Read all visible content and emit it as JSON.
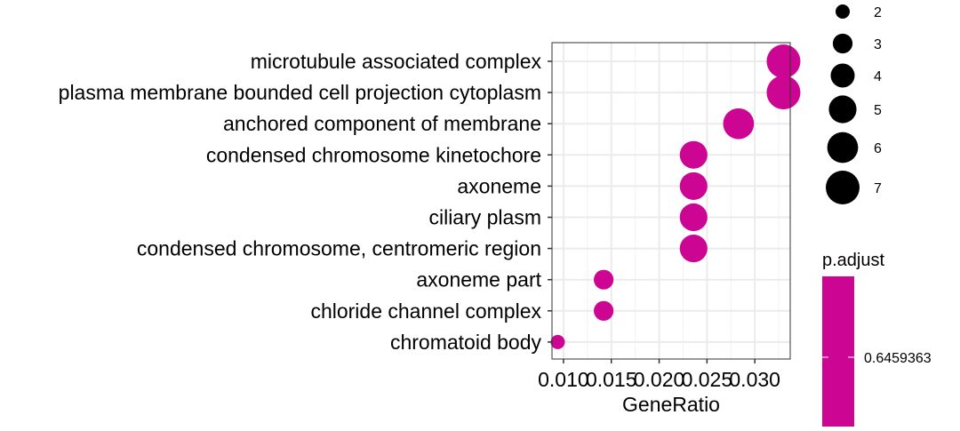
{
  "chart_data": {
    "type": "scatter",
    "xlabel": "GeneRatio",
    "x_ticks": [
      0.01,
      0.015,
      0.02,
      0.025,
      0.03
    ],
    "x_tick_labels": [
      "0.010",
      "0.015",
      "0.020",
      "0.025",
      "0.030"
    ],
    "xlim": [
      0.0088,
      0.0337
    ],
    "categories": [
      "microtubule associated complex",
      "plasma membrane bounded cell projection cytoplasm",
      "anchored component of membrane",
      "condensed chromosome kinetochore",
      "axoneme",
      "ciliary plasm",
      "condensed chromosome, centromeric region",
      "axoneme part",
      "chloride channel complex",
      "chromatoid body"
    ],
    "points": [
      {
        "term": "microtubule associated complex",
        "gene_ratio": 0.033,
        "count": 7,
        "p_adjust": 0.6459363
      },
      {
        "term": "plasma membrane bounded cell projection cytoplasm",
        "gene_ratio": 0.033,
        "count": 7,
        "p_adjust": 0.6459363
      },
      {
        "term": "anchored component of membrane",
        "gene_ratio": 0.0283,
        "count": 6,
        "p_adjust": 0.6459363
      },
      {
        "term": "condensed chromosome kinetochore",
        "gene_ratio": 0.0236,
        "count": 5,
        "p_adjust": 0.6459363
      },
      {
        "term": "axoneme",
        "gene_ratio": 0.0236,
        "count": 5,
        "p_adjust": 0.6459363
      },
      {
        "term": "ciliary plasm",
        "gene_ratio": 0.0236,
        "count": 5,
        "p_adjust": 0.6459363
      },
      {
        "term": "condensed chromosome, centromeric region",
        "gene_ratio": 0.0236,
        "count": 5,
        "p_adjust": 0.6459363
      },
      {
        "term": "axoneme part",
        "gene_ratio": 0.0142,
        "count": 3,
        "p_adjust": 0.6459363
      },
      {
        "term": "chloride channel complex",
        "gene_ratio": 0.0142,
        "count": 3,
        "p_adjust": 0.6459363
      },
      {
        "term": "chromatoid body",
        "gene_ratio": 0.0094,
        "count": 2,
        "p_adjust": 0.6459363
      }
    ],
    "size_legend": {
      "values": [
        2,
        3,
        4,
        5,
        6,
        7
      ],
      "labels": [
        "2",
        "3",
        "4",
        "5",
        "6",
        "7"
      ]
    },
    "color_legend": {
      "title": "p.adjust",
      "label": "0.6459363",
      "color": "#CC0592"
    },
    "point_color": "#CC0592",
    "grid": true,
    "panel_border": true
  }
}
